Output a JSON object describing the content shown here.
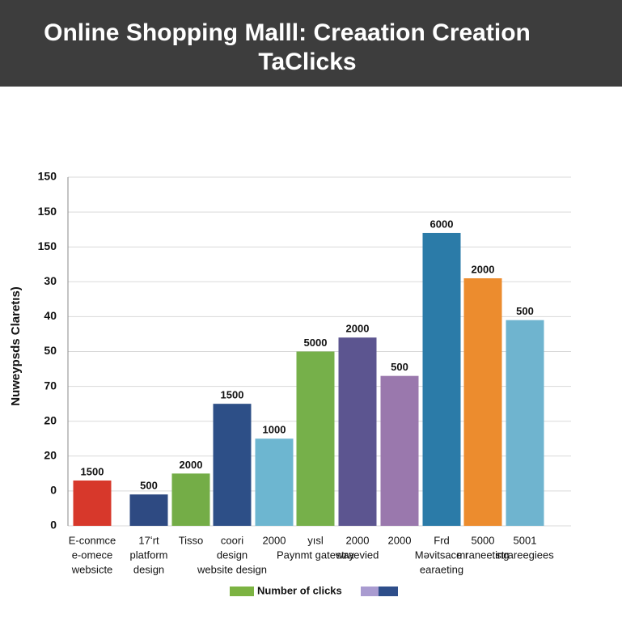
{
  "chart_data": {
    "type": "bar",
    "title": [
      "Online Shopping Malll: Creaation Creation",
      "TaClicks"
    ],
    "y_label": "Nuweypsds Claretıs)",
    "categories": [
      [
        "E-conmce",
        "e-omece",
        "websicte"
      ],
      [
        "17ʻrt",
        "platform",
        "design"
      ],
      [
        "Tisso"
      ],
      [
        "coori",
        "design",
        "website design"
      ],
      [
        "2000"
      ],
      [
        "yısl",
        "Paynmt gateway"
      ],
      [
        "2000",
        "straevied"
      ],
      [
        "2000"
      ],
      [
        "Frd",
        "Məvitsace r",
        "earaeting"
      ],
      [
        "5000",
        "mraneeting"
      ],
      [
        "5001",
        "strareegiees"
      ]
    ],
    "series": [
      {
        "name": "Number of clicks",
        "values": [
          1.3,
          0.9,
          1.5,
          3.5,
          2.5,
          5.0,
          5.4,
          4.3,
          8.4,
          7.1,
          5.9
        ],
        "colors": [
          "#d7382b",
          "#2e4a82",
          "#74ad47",
          "#2d4f87",
          "#6db6d0",
          "#76b04a",
          "#5c5590",
          "#9a78ad",
          "#2b7ba8",
          "#ec8c2e",
          "#6fb4cf"
        ]
      }
    ],
    "annotations": [
      "1500",
      "500",
      "2000",
      "1500",
      "1000",
      "5000",
      "2000",
      "500",
      "6000",
      "2000",
      "500"
    ],
    "legend_swatches": [
      "#7cb342",
      "#a99bd0",
      "#2e4e8a"
    ],
    "ylim": [
      0,
      10
    ],
    "yticks": [
      {
        "value": 0,
        "label": "0"
      },
      {
        "value": 1,
        "label": "0"
      },
      {
        "value": 2,
        "label": "20"
      },
      {
        "value": 3,
        "label": "20"
      },
      {
        "value": 4,
        "label": "70"
      },
      {
        "value": 5,
        "label": "50"
      },
      {
        "value": 6,
        "label": "40"
      },
      {
        "value": 7,
        "label": "30"
      },
      {
        "value": 8,
        "label": "150"
      },
      {
        "value": 9,
        "label": "150"
      },
      {
        "value": 10,
        "label": "150"
      }
    ],
    "grid": true
  }
}
